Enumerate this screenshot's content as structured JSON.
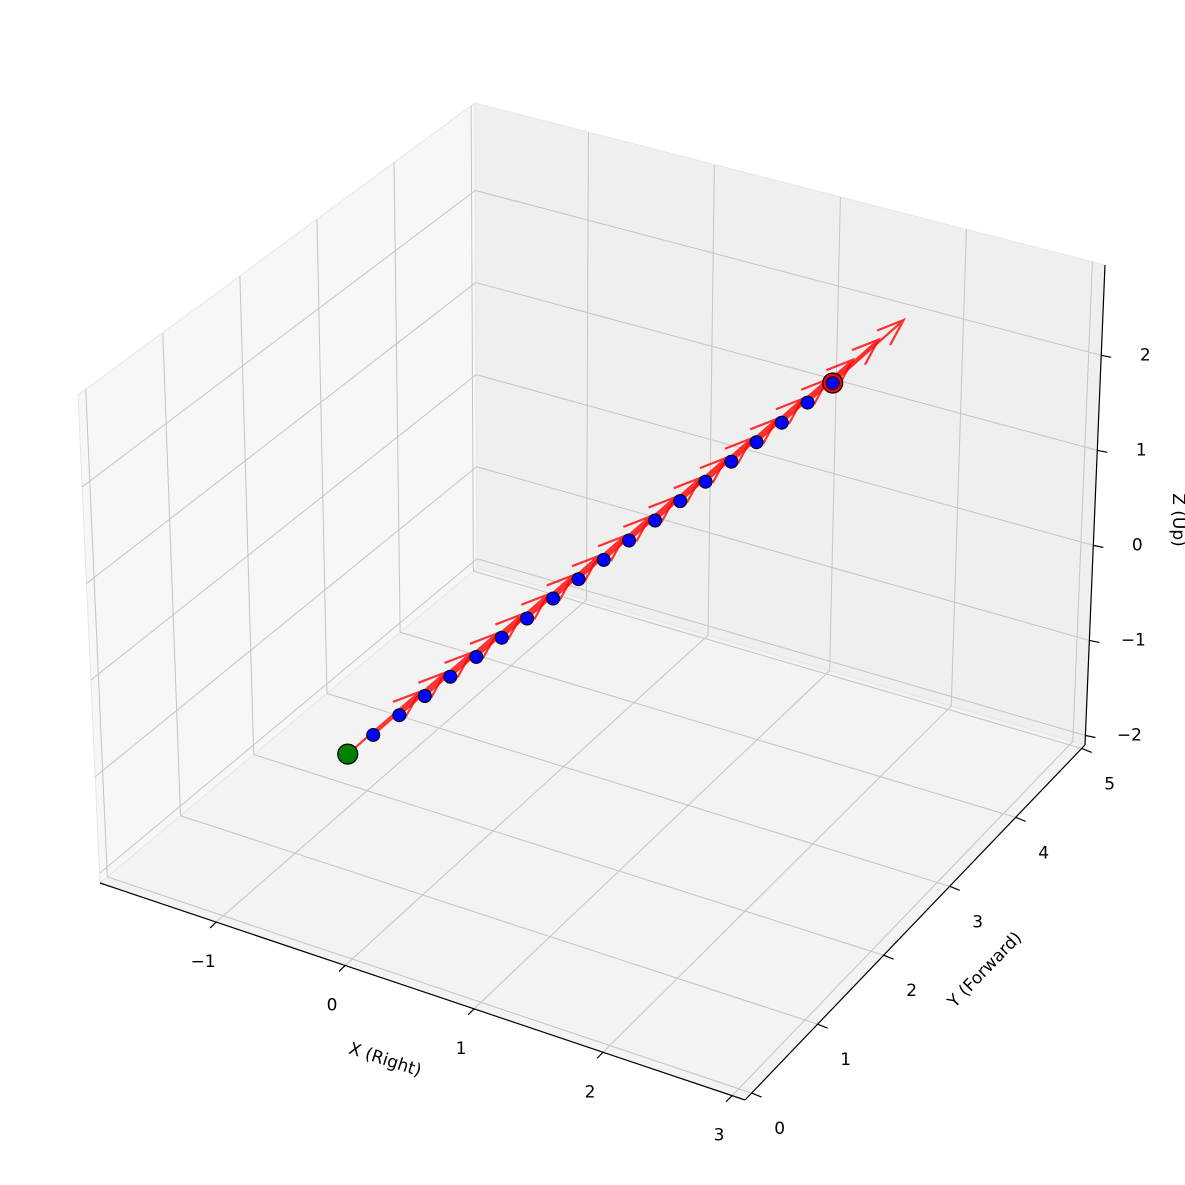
{
  "chart_data": {
    "type": "scatter3d",
    "xlabel": "X (Right)",
    "ylabel": "Y (Forward)",
    "zlabel": "Z (Up)",
    "xlim": [
      -1.9,
      3.1
    ],
    "ylim": [
      -0.1,
      5.05
    ],
    "zlim": [
      -2.1,
      2.95
    ],
    "xticks": [
      {
        "value": -1,
        "label": "−1"
      },
      0,
      1,
      2,
      3
    ],
    "yticks": [
      0,
      1,
      2,
      3,
      4,
      5
    ],
    "zticks": [
      {
        "value": -2,
        "label": "−2"
      },
      {
        "value": -1,
        "label": "−1"
      },
      0,
      1,
      2
    ],
    "grid": true,
    "series": [
      {
        "color": "#0000ff",
        "x": [
          0,
          0.053,
          0.105,
          0.158,
          0.211,
          0.263,
          0.316,
          0.368,
          0.421,
          0.474,
          0.526,
          0.579,
          0.632,
          0.684,
          0.737,
          0.789,
          0.842,
          0.895,
          0.947,
          1
        ],
        "y": [
          0,
          0.26,
          0.53,
          0.79,
          1.05,
          1.32,
          1.58,
          1.84,
          2.11,
          2.37,
          2.63,
          2.89,
          3.16,
          3.42,
          3.68,
          3.95,
          4.21,
          4.47,
          4.74,
          5
        ],
        "z": [
          0,
          0.053,
          0.105,
          0.158,
          0.211,
          0.263,
          0.316,
          0.368,
          0.421,
          0.474,
          0.526,
          0.579,
          0.632,
          0.684,
          0.737,
          0.789,
          0.842,
          0.895,
          0.947,
          1
        ]
      }
    ],
    "arrows": {
      "color": "#ff0000",
      "u": [
        0,
        0,
        0,
        0,
        0,
        0,
        0,
        0,
        0,
        0,
        0,
        0,
        0,
        0,
        0,
        0,
        0,
        0,
        0,
        0
      ],
      "v": [
        1,
        1,
        1,
        1,
        1,
        1,
        1,
        1,
        1,
        1,
        1,
        1,
        1,
        1,
        1,
        1,
        1,
        1,
        1,
        1
      ],
      "w": [
        0,
        0,
        0,
        0,
        0,
        0,
        0,
        0,
        0,
        0,
        0,
        0,
        0,
        0,
        0,
        0,
        0,
        0,
        0,
        0
      ]
    },
    "start": {
      "x": 0,
      "y": 0,
      "z": 0,
      "color": "#008000"
    },
    "end": {
      "x": 1,
      "y": 5,
      "z": 1,
      "color": "#ff0000"
    }
  }
}
